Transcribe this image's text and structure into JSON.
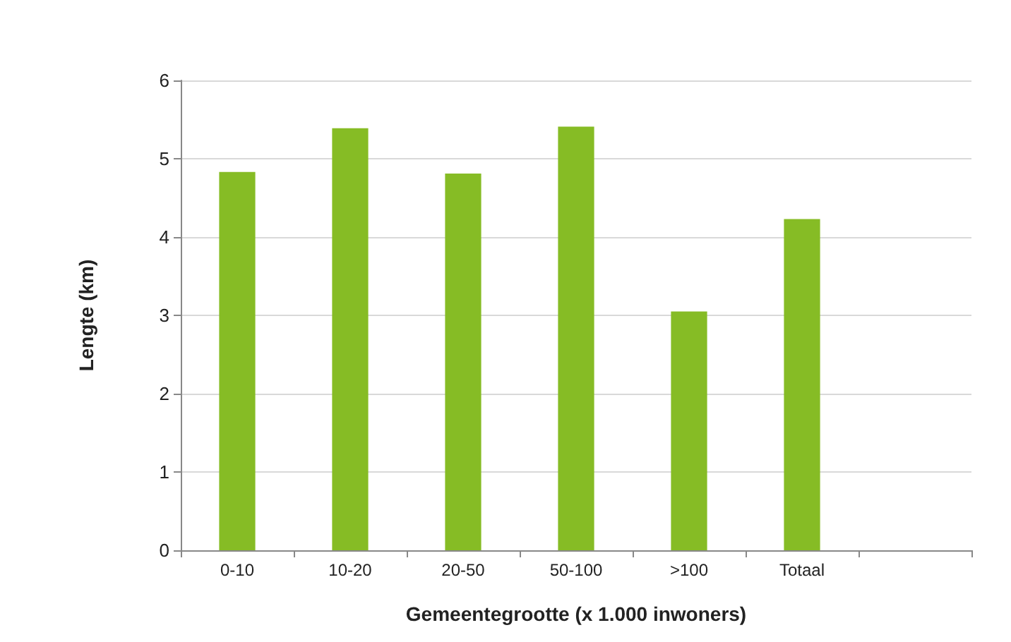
{
  "chart_data": {
    "type": "bar",
    "xlabel": "Gemeentegrootte (x 1.000 inwoners)",
    "ylabel": "Lengte (km)",
    "categories": [
      "0-10",
      "10-20",
      "20-50",
      "50-100",
      ">100",
      "Totaal",
      null
    ],
    "values": [
      4.83,
      5.39,
      4.81,
      5.41,
      3.05,
      4.23,
      null
    ],
    "color": "#86bc25",
    "ylim": [
      0,
      6
    ],
    "yticks": [
      0,
      1,
      2,
      3,
      4,
      5,
      6
    ],
    "grid": "y"
  }
}
